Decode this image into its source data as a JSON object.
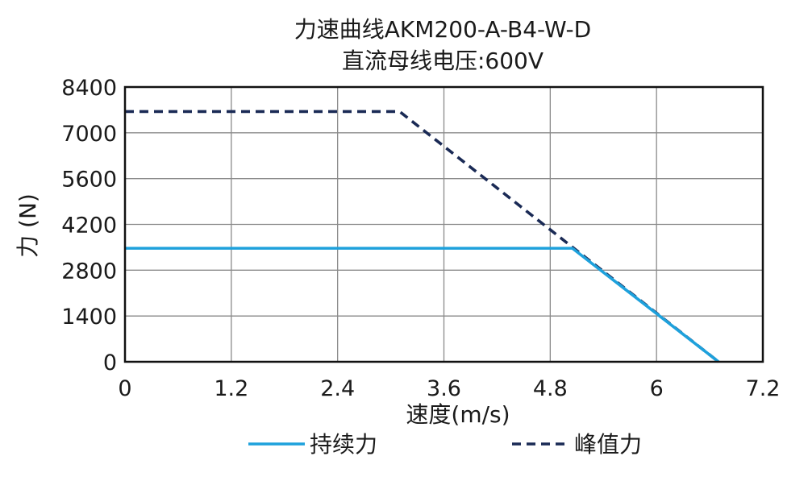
{
  "chart_data": {
    "type": "line",
    "title": "力速曲线AKM200-A-B4-W-D",
    "subtitle": "直流母线电压:600V",
    "xlabel": "速度(m/s)",
    "ylabel": "力 (N)",
    "xlim": [
      0,
      7.2
    ],
    "ylim": [
      0,
      8400
    ],
    "x_ticks": [
      "0",
      "1.2",
      "2.4",
      "3.6",
      "4.8",
      "6",
      "7.2"
    ],
    "y_ticks": [
      "0",
      "1400",
      "2800",
      "4200",
      "5600",
      "7000",
      "8400"
    ],
    "x_tick_values": [
      0,
      1.2,
      2.4,
      3.6,
      4.8,
      6,
      7.2
    ],
    "y_tick_values": [
      0,
      1400,
      2800,
      4200,
      5600,
      7000,
      8400
    ],
    "grid": true,
    "legend_position": "bottom",
    "series": [
      {
        "name": "持续力",
        "color": "#1ea1dc",
        "dash": "solid",
        "x": [
          0,
          5.05,
          6.7
        ],
        "y": [
          3470,
          3470,
          0
        ]
      },
      {
        "name": "峰值力",
        "color": "#1a2a55",
        "dash": "dashed",
        "x": [
          0,
          3.1,
          6.7
        ],
        "y": [
          7650,
          7650,
          0
        ]
      }
    ]
  }
}
